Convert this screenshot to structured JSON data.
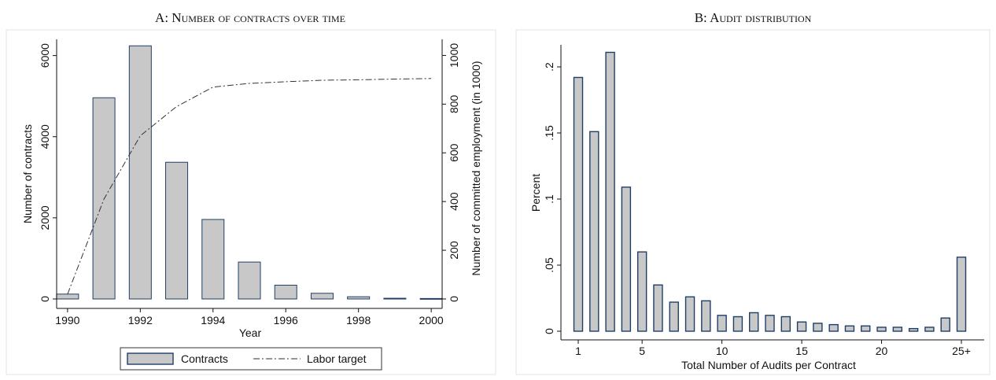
{
  "panels": {
    "a": {
      "title": "A: Number of contracts over time"
    },
    "b": {
      "title": "B: Audit distribution"
    }
  },
  "chart_data": [
    {
      "type": "bar",
      "title": "A: Number of contracts over time",
      "xlabel": "Year",
      "ylabel": "Number of contracts",
      "y2label": "Number of committed employment (in 1000)",
      "x": [
        1990,
        1991,
        1992,
        1993,
        1994,
        1995,
        1996,
        1997,
        1998,
        1999,
        2000
      ],
      "xticks": [
        "1990",
        "1992",
        "1994",
        "1996",
        "1998",
        "2000"
      ],
      "yticks": [
        "0",
        "2000",
        "4000",
        "6000"
      ],
      "y2ticks": [
        "0",
        "200",
        "400",
        "600",
        "800",
        "1000"
      ],
      "ylim": [
        0,
        6400
      ],
      "y2lim": [
        0,
        1066
      ],
      "xlim": [
        1989.7,
        2000.3
      ],
      "series": [
        {
          "name": "Contracts",
          "type": "bar",
          "axis": "left",
          "values": [
            120,
            4960,
            6240,
            3370,
            1960,
            910,
            340,
            140,
            55,
            18,
            12
          ]
        },
        {
          "name": "Labor target",
          "type": "line",
          "axis": "right",
          "style": "dash-dot",
          "values": [
            20,
            410,
            670,
            790,
            870,
            885,
            892,
            898,
            900,
            903,
            905
          ]
        }
      ],
      "legend": {
        "position": "bottom",
        "entries": [
          "Contracts",
          "Labor target"
        ]
      },
      "colors": {
        "bar_fill": "#c8c8c8",
        "bar_edge": "#1f3f66",
        "line": "#333333"
      }
    },
    {
      "type": "bar",
      "title": "B: Audit distribution",
      "xlabel": "Total Number of Audits per Contract",
      "ylabel": "Percent",
      "categories": [
        "1",
        "2",
        "3",
        "4",
        "5",
        "6",
        "7",
        "8",
        "9",
        "10",
        "11",
        "12",
        "13",
        "14",
        "15",
        "16",
        "17",
        "18",
        "19",
        "20",
        "21",
        "22",
        "23",
        "24",
        "25+"
      ],
      "values": [
        0.192,
        0.151,
        0.211,
        0.109,
        0.06,
        0.035,
        0.022,
        0.026,
        0.023,
        0.012,
        0.011,
        0.014,
        0.012,
        0.011,
        0.007,
        0.006,
        0.005,
        0.004,
        0.004,
        0.003,
        0.003,
        0.002,
        0.003,
        0.01,
        0.056
      ],
      "xticks": [
        "1",
        "5",
        "10",
        "15",
        "20",
        "25+"
      ],
      "yticks": [
        "0",
        ".05",
        ".1",
        ".15",
        ".2"
      ],
      "ylim": [
        0,
        0.218
      ],
      "colors": {
        "bar_fill": "#c8c8c8",
        "bar_edge": "#1f3f66"
      }
    }
  ]
}
